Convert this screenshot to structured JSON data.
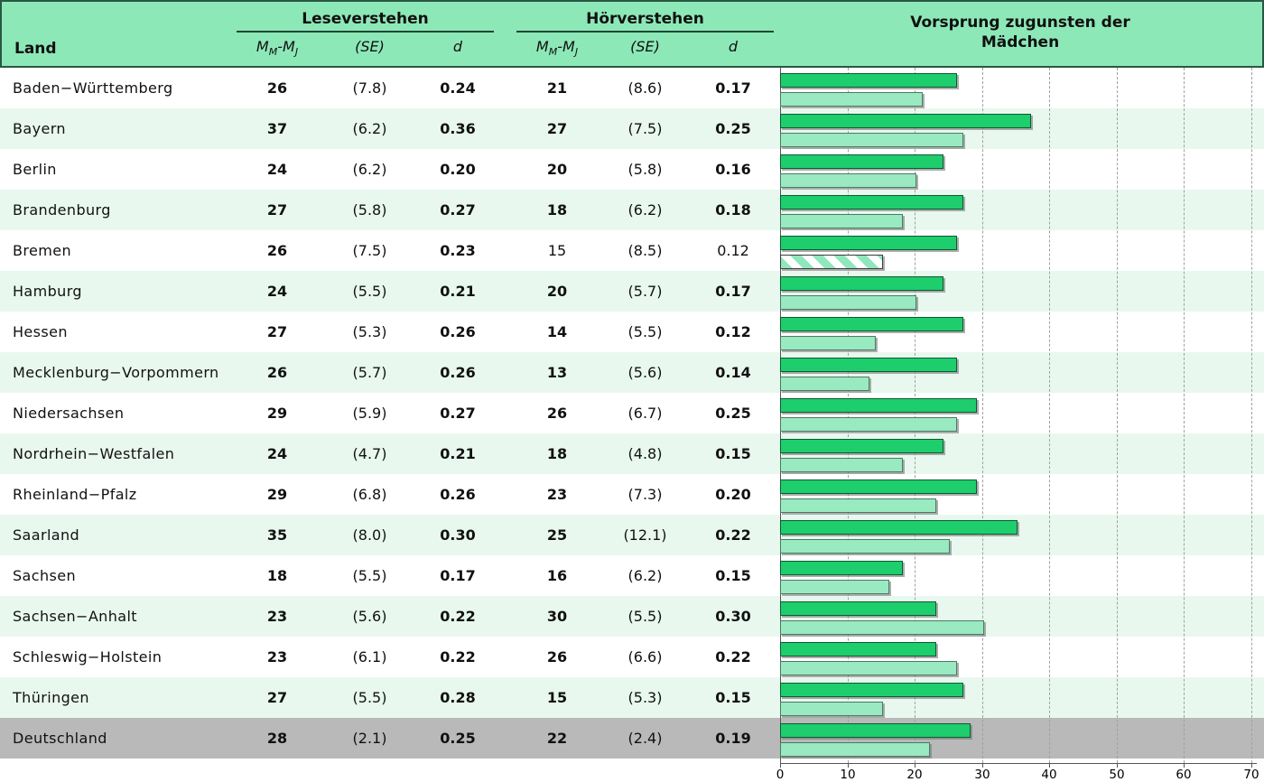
{
  "header": {
    "land": "Land",
    "lese_title": "Leseverstehen",
    "hoer_title": "Hörverstehen",
    "chart_title1": "Vorsprung zugunsten der",
    "chart_title2": "Mädchen",
    "sub": {
      "m1": "M",
      "m1s": "M",
      "dash": "-",
      "m2": "M",
      "m2s": "J",
      "se": "(SE)",
      "d": "d"
    }
  },
  "colors": {
    "header_bg": "#8de8b8",
    "header_border": "#2a5844",
    "row_alt_bg": "#e8f8ef",
    "row_total_bg": "#b9b9b9",
    "bar_lese": "#1ecd6c",
    "bar_hoer": "#99e9c1",
    "gridline": "#a0a0a0"
  },
  "rows": [
    {
      "land": "Baden−Württemberg",
      "lese": {
        "m": "26",
        "se": "(7.8)",
        "d": "0.24",
        "sig": true
      },
      "hoer": {
        "m": "21",
        "se": "(8.6)",
        "d": "0.17",
        "sig": true
      },
      "highlight": "none"
    },
    {
      "land": "Bayern",
      "lese": {
        "m": "37",
        "se": "(6.2)",
        "d": "0.36",
        "sig": true
      },
      "hoer": {
        "m": "27",
        "se": "(7.5)",
        "d": "0.25",
        "sig": true
      },
      "highlight": "none"
    },
    {
      "land": "Berlin",
      "lese": {
        "m": "24",
        "se": "(6.2)",
        "d": "0.20",
        "sig": true
      },
      "hoer": {
        "m": "20",
        "se": "(5.8)",
        "d": "0.16",
        "sig": true
      },
      "highlight": "none"
    },
    {
      "land": "Brandenburg",
      "lese": {
        "m": "27",
        "se": "(5.8)",
        "d": "0.27",
        "sig": true
      },
      "hoer": {
        "m": "18",
        "se": "(6.2)",
        "d": "0.18",
        "sig": true
      },
      "highlight": "none"
    },
    {
      "land": "Bremen",
      "lese": {
        "m": "26",
        "se": "(7.5)",
        "d": "0.23",
        "sig": true
      },
      "hoer": {
        "m": "15",
        "se": "(8.5)",
        "d": "0.12",
        "sig": false
      },
      "highlight": "none"
    },
    {
      "land": "Hamburg",
      "lese": {
        "m": "24",
        "se": "(5.5)",
        "d": "0.21",
        "sig": true
      },
      "hoer": {
        "m": "20",
        "se": "(5.7)",
        "d": "0.17",
        "sig": true
      },
      "highlight": "none"
    },
    {
      "land": "Hessen",
      "lese": {
        "m": "27",
        "se": "(5.3)",
        "d": "0.26",
        "sig": true
      },
      "hoer": {
        "m": "14",
        "se": "(5.5)",
        "d": "0.12",
        "sig": true
      },
      "highlight": "none"
    },
    {
      "land": "Mecklenburg−Vorpommern",
      "lese": {
        "m": "26",
        "se": "(5.7)",
        "d": "0.26",
        "sig": true
      },
      "hoer": {
        "m": "13",
        "se": "(5.6)",
        "d": "0.14",
        "sig": true
      },
      "highlight": "none"
    },
    {
      "land": "Niedersachsen",
      "lese": {
        "m": "29",
        "se": "(5.9)",
        "d": "0.27",
        "sig": true
      },
      "hoer": {
        "m": "26",
        "se": "(6.7)",
        "d": "0.25",
        "sig": true
      },
      "highlight": "none"
    },
    {
      "land": "Nordrhein−Westfalen",
      "lese": {
        "m": "24",
        "se": "(4.7)",
        "d": "0.21",
        "sig": true
      },
      "hoer": {
        "m": "18",
        "se": "(4.8)",
        "d": "0.15",
        "sig": true
      },
      "highlight": "none"
    },
    {
      "land": "Rheinland−Pfalz",
      "lese": {
        "m": "29",
        "se": "(6.8)",
        "d": "0.26",
        "sig": true
      },
      "hoer": {
        "m": "23",
        "se": "(7.3)",
        "d": "0.20",
        "sig": true
      },
      "highlight": "none"
    },
    {
      "land": "Saarland",
      "lese": {
        "m": "35",
        "se": "(8.0)",
        "d": "0.30",
        "sig": true
      },
      "hoer": {
        "m": "25",
        "se": "(12.1)",
        "d": "0.22",
        "sig": true
      },
      "highlight": "none"
    },
    {
      "land": "Sachsen",
      "lese": {
        "m": "18",
        "se": "(5.5)",
        "d": "0.17",
        "sig": true
      },
      "hoer": {
        "m": "16",
        "se": "(6.2)",
        "d": "0.15",
        "sig": true
      },
      "highlight": "none"
    },
    {
      "land": "Sachsen−Anhalt",
      "lese": {
        "m": "23",
        "se": "(5.6)",
        "d": "0.22",
        "sig": true
      },
      "hoer": {
        "m": "30",
        "se": "(5.5)",
        "d": "0.30",
        "sig": true
      },
      "highlight": "none"
    },
    {
      "land": "Schleswig−Holstein",
      "lese": {
        "m": "23",
        "se": "(6.1)",
        "d": "0.22",
        "sig": true
      },
      "hoer": {
        "m": "26",
        "se": "(6.6)",
        "d": "0.22",
        "sig": true
      },
      "highlight": "none"
    },
    {
      "land": "Thüringen",
      "lese": {
        "m": "27",
        "se": "(5.5)",
        "d": "0.28",
        "sig": true
      },
      "hoer": {
        "m": "15",
        "se": "(5.3)",
        "d": "0.15",
        "sig": true
      },
      "highlight": "none"
    },
    {
      "land": "Deutschland",
      "lese": {
        "m": "28",
        "se": "(2.1)",
        "d": "0.25",
        "sig": true
      },
      "hoer": {
        "m": "22",
        "se": "(2.4)",
        "d": "0.19",
        "sig": true
      },
      "highlight": "total"
    }
  ],
  "chart_data": {
    "type": "bar",
    "title": "Vorsprung zugunsten der Mädchen",
    "orientation": "horizontal",
    "categories": [
      "Baden−Württemberg",
      "Bayern",
      "Berlin",
      "Brandenburg",
      "Bremen",
      "Hamburg",
      "Hessen",
      "Mecklenburg−Vorpommern",
      "Niedersachsen",
      "Nordrhein−Westfalen",
      "Rheinland−Pfalz",
      "Saarland",
      "Sachsen",
      "Sachsen−Anhalt",
      "Schleswig−Holstein",
      "Thüringen",
      "Deutschland"
    ],
    "series": [
      {
        "name": "Leseverstehen",
        "values": [
          26,
          37,
          24,
          27,
          26,
          24,
          27,
          26,
          29,
          24,
          29,
          35,
          18,
          23,
          23,
          27,
          28
        ]
      },
      {
        "name": "Hörverstehen",
        "values": [
          21,
          27,
          20,
          18,
          15,
          20,
          14,
          13,
          26,
          18,
          23,
          25,
          16,
          30,
          26,
          15,
          22
        ]
      }
    ],
    "xlim": [
      0,
      70
    ],
    "ticks": [
      0,
      10,
      20,
      30,
      40,
      50,
      60,
      70
    ],
    "grid": "dashed-vertical",
    "hatched_bars": [
      {
        "series": "Hörverstehen",
        "category": "Bremen",
        "meaning": "not significant"
      }
    ]
  }
}
